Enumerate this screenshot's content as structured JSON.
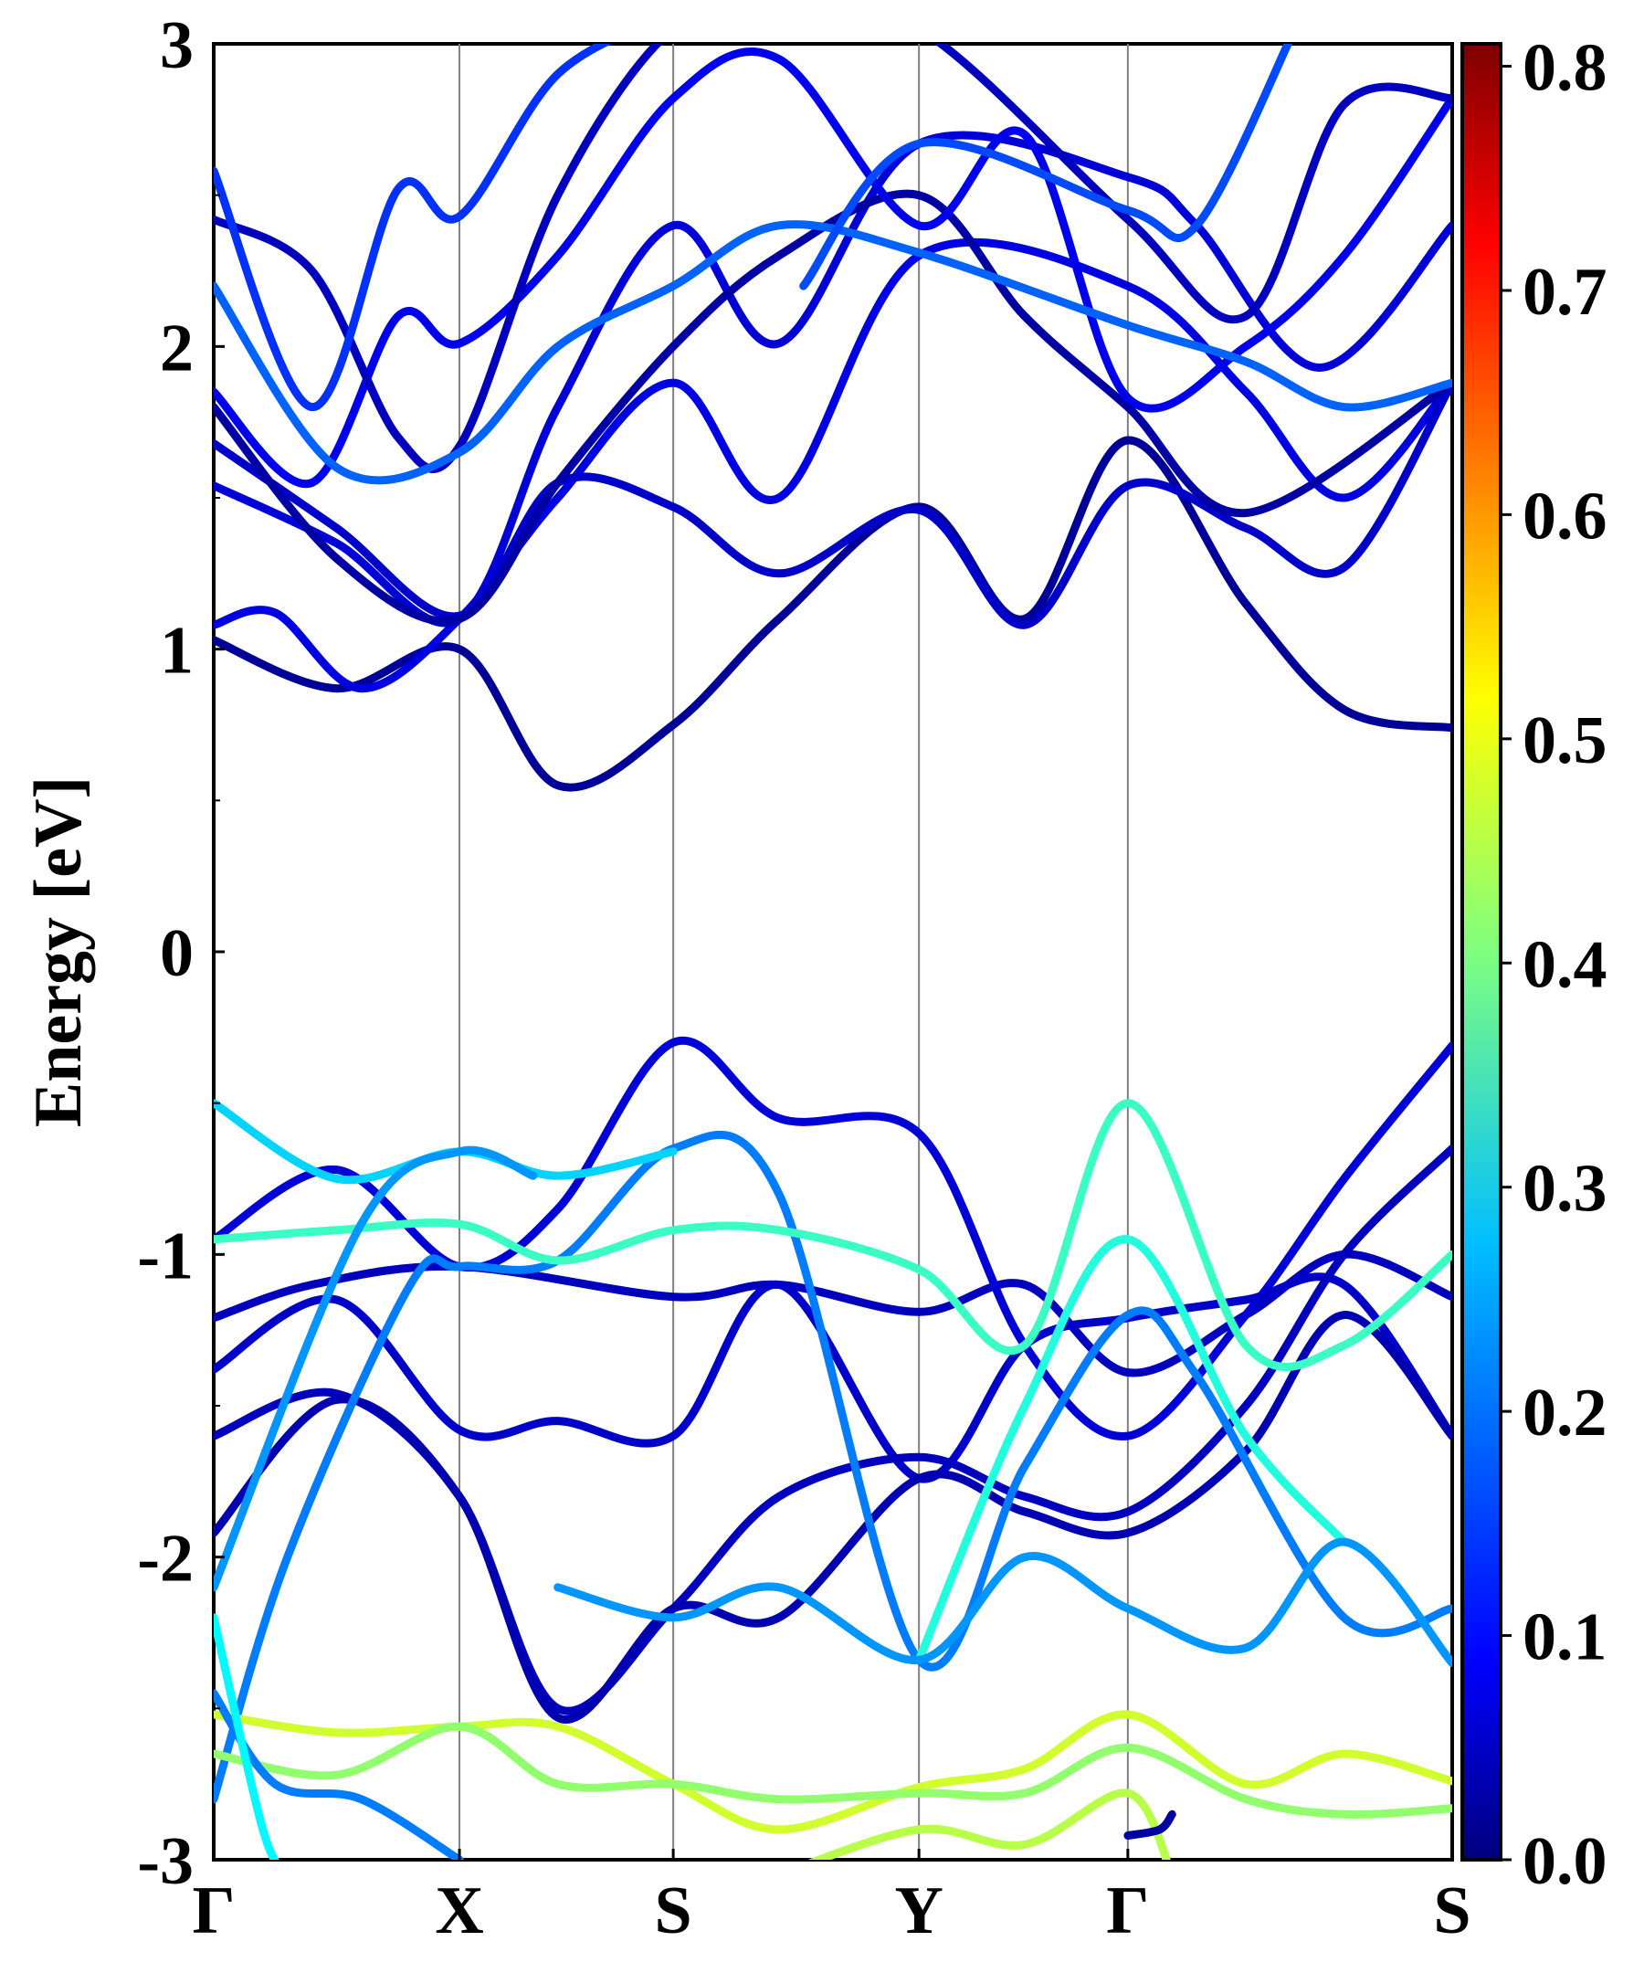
{
  "chart_data": {
    "type": "line",
    "title": "",
    "xlabel": "",
    "ylabel": "Energy [eV]",
    "ylim": [
      -3,
      3
    ],
    "yticks": [
      "3",
      "2",
      "1",
      "0",
      "-1",
      "-2",
      "-3"
    ],
    "x_kpoints": [
      {
        "label": "Γ",
        "x": 0.0
      },
      {
        "label": "X",
        "x": 1.0
      },
      {
        "label": "S",
        "x": 1.87
      },
      {
        "label": "Y",
        "x": 2.87
      },
      {
        "label": "Γ",
        "x": 3.72
      },
      {
        "label": "S",
        "x": 5.04
      }
    ],
    "colorbar": {
      "colormap": "jet",
      "min": 0.0,
      "max": 0.81,
      "ticks": [
        "0.0",
        "0.1",
        "0.2",
        "0.3",
        "0.4",
        "0.5",
        "0.6",
        "0.7",
        "0.8"
      ]
    },
    "series": [
      {
        "name": "cb-1",
        "weight": 0.02,
        "points": [
          [
            0,
            1.03
          ],
          [
            0.5,
            0.87
          ],
          [
            1.0,
            1.0
          ],
          [
            1.4,
            0.55
          ],
          [
            1.87,
            0.75
          ],
          [
            2.3,
            1.1
          ],
          [
            2.87,
            1.47
          ],
          [
            3.3,
            1.1
          ],
          [
            3.72,
            1.69
          ],
          [
            4.2,
            1.15
          ],
          [
            4.6,
            0.8
          ],
          [
            5.04,
            0.74
          ]
        ]
      },
      {
        "name": "cb-2",
        "weight": 0.08,
        "points": [
          [
            0,
            1.08
          ],
          [
            0.25,
            1.12
          ],
          [
            0.6,
            0.87
          ],
          [
            1.0,
            1.1
          ],
          [
            1.4,
            1.5
          ],
          [
            1.87,
            1.88
          ],
          [
            2.3,
            1.5
          ],
          [
            2.87,
            2.3
          ],
          [
            3.72,
            2.2
          ],
          [
            4.2,
            1.85
          ],
          [
            4.6,
            1.5
          ],
          [
            5.04,
            1.88
          ]
        ]
      },
      {
        "name": "cb-3",
        "weight": 0.07,
        "points": [
          [
            0,
            1.54
          ],
          [
            0.5,
            1.35
          ],
          [
            1.0,
            1.1
          ],
          [
            1.4,
            1.8
          ],
          [
            1.87,
            2.4
          ],
          [
            2.3,
            2.01
          ],
          [
            2.87,
            2.67
          ],
          [
            3.72,
            2.56
          ],
          [
            4.0,
            2.4
          ],
          [
            4.5,
            1.93
          ],
          [
            5.04,
            2.4
          ]
        ]
      },
      {
        "name": "cb-4",
        "weight": 0.06,
        "points": [
          [
            0,
            1.68
          ],
          [
            0.5,
            1.4
          ],
          [
            1.0,
            1.11
          ],
          [
            1.4,
            1.55
          ],
          [
            1.87,
            1.47
          ],
          [
            2.3,
            1.25
          ],
          [
            2.87,
            1.46
          ],
          [
            3.3,
            1.08
          ],
          [
            3.72,
            1.54
          ],
          [
            4.2,
            1.4
          ],
          [
            4.6,
            1.27
          ],
          [
            5.04,
            1.88
          ]
        ]
      },
      {
        "name": "cb-5",
        "weight": 0.03,
        "points": [
          [
            0,
            1.8
          ],
          [
            0.5,
            1.3
          ],
          [
            1.0,
            1.1
          ],
          [
            1.4,
            1.55
          ],
          [
            1.87,
            2.0
          ],
          [
            2.3,
            2.3
          ],
          [
            2.87,
            2.5
          ],
          [
            3.3,
            2.1
          ],
          [
            3.72,
            1.8
          ],
          [
            4.2,
            1.45
          ],
          [
            5.04,
            1.88
          ]
        ]
      },
      {
        "name": "cb-6",
        "weight": 0.09,
        "points": [
          [
            0,
            1.85
          ],
          [
            0.4,
            1.55
          ],
          [
            0.75,
            2.1
          ],
          [
            1.0,
            2.01
          ],
          [
            1.4,
            2.3
          ],
          [
            1.87,
            2.82
          ],
          [
            2.3,
            2.95
          ],
          [
            2.87,
            2.4
          ],
          [
            3.3,
            2.7
          ],
          [
            3.72,
            1.83
          ],
          [
            4.2,
            2.0
          ],
          [
            4.6,
            2.3
          ],
          [
            5.04,
            2.82
          ]
        ]
      },
      {
        "name": "cb-7",
        "weight": 0.05,
        "points": [
          [
            0,
            2.42
          ],
          [
            0.4,
            2.25
          ],
          [
            0.75,
            1.7
          ],
          [
            1.0,
            1.67
          ],
          [
            1.4,
            2.5
          ],
          [
            1.87,
            3.05
          ],
          [
            2.3,
            3.1
          ],
          [
            2.87,
            3.05
          ],
          [
            3.72,
            2.42
          ],
          [
            4.2,
            2.1
          ],
          [
            4.6,
            2.8
          ],
          [
            5.04,
            2.82
          ]
        ]
      },
      {
        "name": "cb-8",
        "weight": 0.14,
        "points": [
          [
            0,
            2.58
          ],
          [
            0.4,
            1.8
          ],
          [
            0.75,
            2.52
          ],
          [
            1.0,
            2.43
          ],
          [
            1.4,
            2.9
          ],
          [
            1.87,
            3.1
          ]
        ]
      },
      {
        "name": "cb-9",
        "weight": 0.18,
        "points": [
          [
            0,
            2.2
          ],
          [
            0.5,
            1.6
          ],
          [
            1.0,
            1.65
          ],
          [
            1.4,
            2.0
          ],
          [
            1.87,
            2.2
          ],
          [
            2.3,
            2.4
          ],
          [
            2.87,
            2.31
          ],
          [
            3.72,
            2.07
          ],
          [
            4.2,
            1.95
          ],
          [
            4.6,
            1.8
          ],
          [
            5.04,
            1.88
          ]
        ]
      },
      {
        "name": "cb-10",
        "weight": 0.16,
        "points": [
          [
            2.4,
            2.2
          ],
          [
            2.87,
            2.67
          ],
          [
            3.72,
            2.45
          ],
          [
            4.0,
            2.4
          ],
          [
            4.4,
            3.05
          ]
        ]
      },
      {
        "name": "vb-1",
        "weight": 0.05,
        "points": [
          [
            0,
            -1.21
          ],
          [
            0.4,
            -1.1
          ],
          [
            1.0,
            -1.04
          ],
          [
            1.87,
            -1.14
          ],
          [
            2.3,
            -1.1
          ],
          [
            2.87,
            -1.19
          ],
          [
            3.3,
            -1.1
          ],
          [
            3.72,
            -1.39
          ],
          [
            4.2,
            -1.2
          ],
          [
            4.6,
            -1.0
          ],
          [
            5.04,
            -1.14
          ]
        ]
      },
      {
        "name": "vb-2",
        "weight": 0.07,
        "points": [
          [
            0,
            -0.95
          ],
          [
            0.5,
            -0.72
          ],
          [
            1.0,
            -1.04
          ],
          [
            1.4,
            -0.85
          ],
          [
            1.87,
            -0.3
          ],
          [
            2.3,
            -0.55
          ],
          [
            2.87,
            -0.6
          ],
          [
            3.3,
            -1.3
          ],
          [
            3.72,
            -1.6
          ],
          [
            4.2,
            -1.2
          ],
          [
            4.6,
            -0.75
          ],
          [
            5.04,
            -0.31
          ]
        ]
      },
      {
        "name": "vb-3",
        "weight": 0.06,
        "points": [
          [
            0,
            -1.38
          ],
          [
            0.5,
            -1.15
          ],
          [
            1.0,
            -1.58
          ],
          [
            1.4,
            -1.55
          ],
          [
            1.87,
            -1.6
          ],
          [
            2.3,
            -1.1
          ],
          [
            2.87,
            -1.74
          ],
          [
            3.3,
            -1.3
          ],
          [
            3.72,
            -1.21
          ],
          [
            4.2,
            -1.15
          ],
          [
            4.6,
            -1.1
          ],
          [
            5.04,
            -1.6
          ]
        ]
      },
      {
        "name": "vb-4",
        "weight": 0.05,
        "points": [
          [
            0,
            -1.6
          ],
          [
            0.5,
            -1.46
          ],
          [
            1.0,
            -1.8
          ],
          [
            1.4,
            -2.5
          ],
          [
            1.87,
            -2.17
          ],
          [
            2.3,
            -1.8
          ],
          [
            2.87,
            -1.67
          ],
          [
            3.3,
            -1.8
          ],
          [
            3.72,
            -1.85
          ],
          [
            4.2,
            -1.5
          ],
          [
            4.6,
            -1.0
          ],
          [
            5.04,
            -0.65
          ]
        ]
      },
      {
        "name": "vb-5",
        "weight": 0.04,
        "points": [
          [
            0,
            -1.92
          ],
          [
            0.5,
            -1.48
          ],
          [
            1.0,
            -1.8
          ],
          [
            1.4,
            -2.53
          ],
          [
            1.87,
            -2.17
          ],
          [
            2.3,
            -2.2
          ],
          [
            2.87,
            -1.74
          ],
          [
            3.3,
            -1.85
          ],
          [
            3.72,
            -1.92
          ],
          [
            4.2,
            -1.65
          ],
          [
            4.6,
            -1.2
          ],
          [
            5.04,
            -1.6
          ]
        ]
      },
      {
        "name": "vb-6",
        "weight": 0.2,
        "points": [
          [
            0,
            -2.8
          ],
          [
            0.3,
            -2.0
          ],
          [
            0.8,
            -1.1
          ],
          [
            1.0,
            -1.04
          ],
          [
            1.4,
            -1.02
          ],
          [
            1.87,
            -0.65
          ],
          [
            2.3,
            -0.8
          ],
          [
            2.87,
            -2.34
          ],
          [
            3.3,
            -1.7
          ],
          [
            3.72,
            -1.2
          ],
          [
            4.0,
            -1.4
          ],
          [
            4.6,
            -2.2
          ],
          [
            5.04,
            -2.17
          ]
        ]
      },
      {
        "name": "vb-7",
        "weight": 0.27,
        "points": [
          [
            0,
            -0.5
          ],
          [
            0.5,
            -0.75
          ],
          [
            1.0,
            -0.66
          ],
          [
            1.4,
            -0.74
          ],
          [
            1.87,
            -0.66
          ]
        ]
      },
      {
        "name": "vb-8",
        "weight": 0.35,
        "points": [
          [
            0,
            -0.95
          ],
          [
            0.5,
            -0.92
          ],
          [
            1.0,
            -0.9
          ],
          [
            1.4,
            -1.02
          ],
          [
            1.87,
            -0.92
          ],
          [
            2.3,
            -0.92
          ],
          [
            2.87,
            -1.05
          ],
          [
            3.3,
            -1.3
          ],
          [
            3.72,
            -0.5
          ],
          [
            4.2,
            -1.3
          ],
          [
            4.6,
            -1.3
          ],
          [
            5.04,
            -1.0
          ]
        ]
      },
      {
        "name": "vb-9",
        "weight": 0.22,
        "points": [
          [
            0,
            -2.1
          ],
          [
            0.6,
            -0.9
          ],
          [
            1.0,
            -0.66
          ],
          [
            1.3,
            -0.74
          ]
        ]
      },
      {
        "name": "vb-10",
        "weight": 0.33,
        "points": [
          [
            2.87,
            -2.34
          ],
          [
            3.3,
            -1.5
          ],
          [
            3.72,
            -0.95
          ],
          [
            4.2,
            -1.6
          ],
          [
            4.6,
            -1.95
          ]
        ]
      },
      {
        "name": "vb-11",
        "weight": 0.22,
        "points": [
          [
            1.4,
            -2.1
          ],
          [
            1.87,
            -2.2
          ],
          [
            2.3,
            -2.1
          ],
          [
            2.87,
            -2.34
          ],
          [
            3.3,
            -2.0
          ],
          [
            3.72,
            -2.17
          ],
          [
            4.2,
            -2.3
          ],
          [
            4.6,
            -1.95
          ],
          [
            5.04,
            -2.35
          ]
        ]
      },
      {
        "name": "vb-12",
        "weight": 0.47,
        "points": [
          [
            0,
            -2.52
          ],
          [
            0.5,
            -2.58
          ],
          [
            1.0,
            -2.56
          ],
          [
            1.4,
            -2.56
          ],
          [
            1.87,
            -2.75
          ],
          [
            2.3,
            -2.9
          ],
          [
            2.87,
            -2.76
          ],
          [
            3.3,
            -2.7
          ],
          [
            3.72,
            -2.52
          ],
          [
            4.2,
            -2.75
          ],
          [
            4.6,
            -2.65
          ],
          [
            5.04,
            -2.74
          ]
        ]
      },
      {
        "name": "vb-13",
        "weight": 0.42,
        "points": [
          [
            0,
            -2.65
          ],
          [
            0.5,
            -2.72
          ],
          [
            1.0,
            -2.56
          ],
          [
            1.4,
            -2.75
          ],
          [
            1.87,
            -2.75
          ],
          [
            2.3,
            -2.8
          ],
          [
            2.87,
            -2.78
          ],
          [
            3.3,
            -2.78
          ],
          [
            3.72,
            -2.63
          ],
          [
            4.2,
            -2.8
          ],
          [
            4.6,
            -2.85
          ],
          [
            5.04,
            -2.83
          ]
        ]
      },
      {
        "name": "vb-14",
        "weight": 0.2,
        "points": [
          [
            0,
            -2.45
          ],
          [
            0.25,
            -2.75
          ],
          [
            0.6,
            -2.8
          ],
          [
            1.0,
            -3.0
          ]
        ]
      },
      {
        "name": "vb-15",
        "weight": 0.3,
        "points": [
          [
            0,
            -2.2
          ],
          [
            0.2,
            -2.9
          ],
          [
            0.3,
            -3.05
          ]
        ]
      },
      {
        "name": "vb-16",
        "weight": 0.45,
        "points": [
          [
            2.3,
            -3.05
          ],
          [
            2.87,
            -2.9
          ],
          [
            3.3,
            -2.95
          ],
          [
            3.72,
            -2.78
          ],
          [
            3.9,
            -3.05
          ]
        ]
      },
      {
        "name": "vb-17",
        "weight": 0.03,
        "points": [
          [
            3.72,
            -2.92
          ],
          [
            3.85,
            -2.9
          ],
          [
            3.9,
            -2.85
          ]
        ]
      }
    ]
  }
}
